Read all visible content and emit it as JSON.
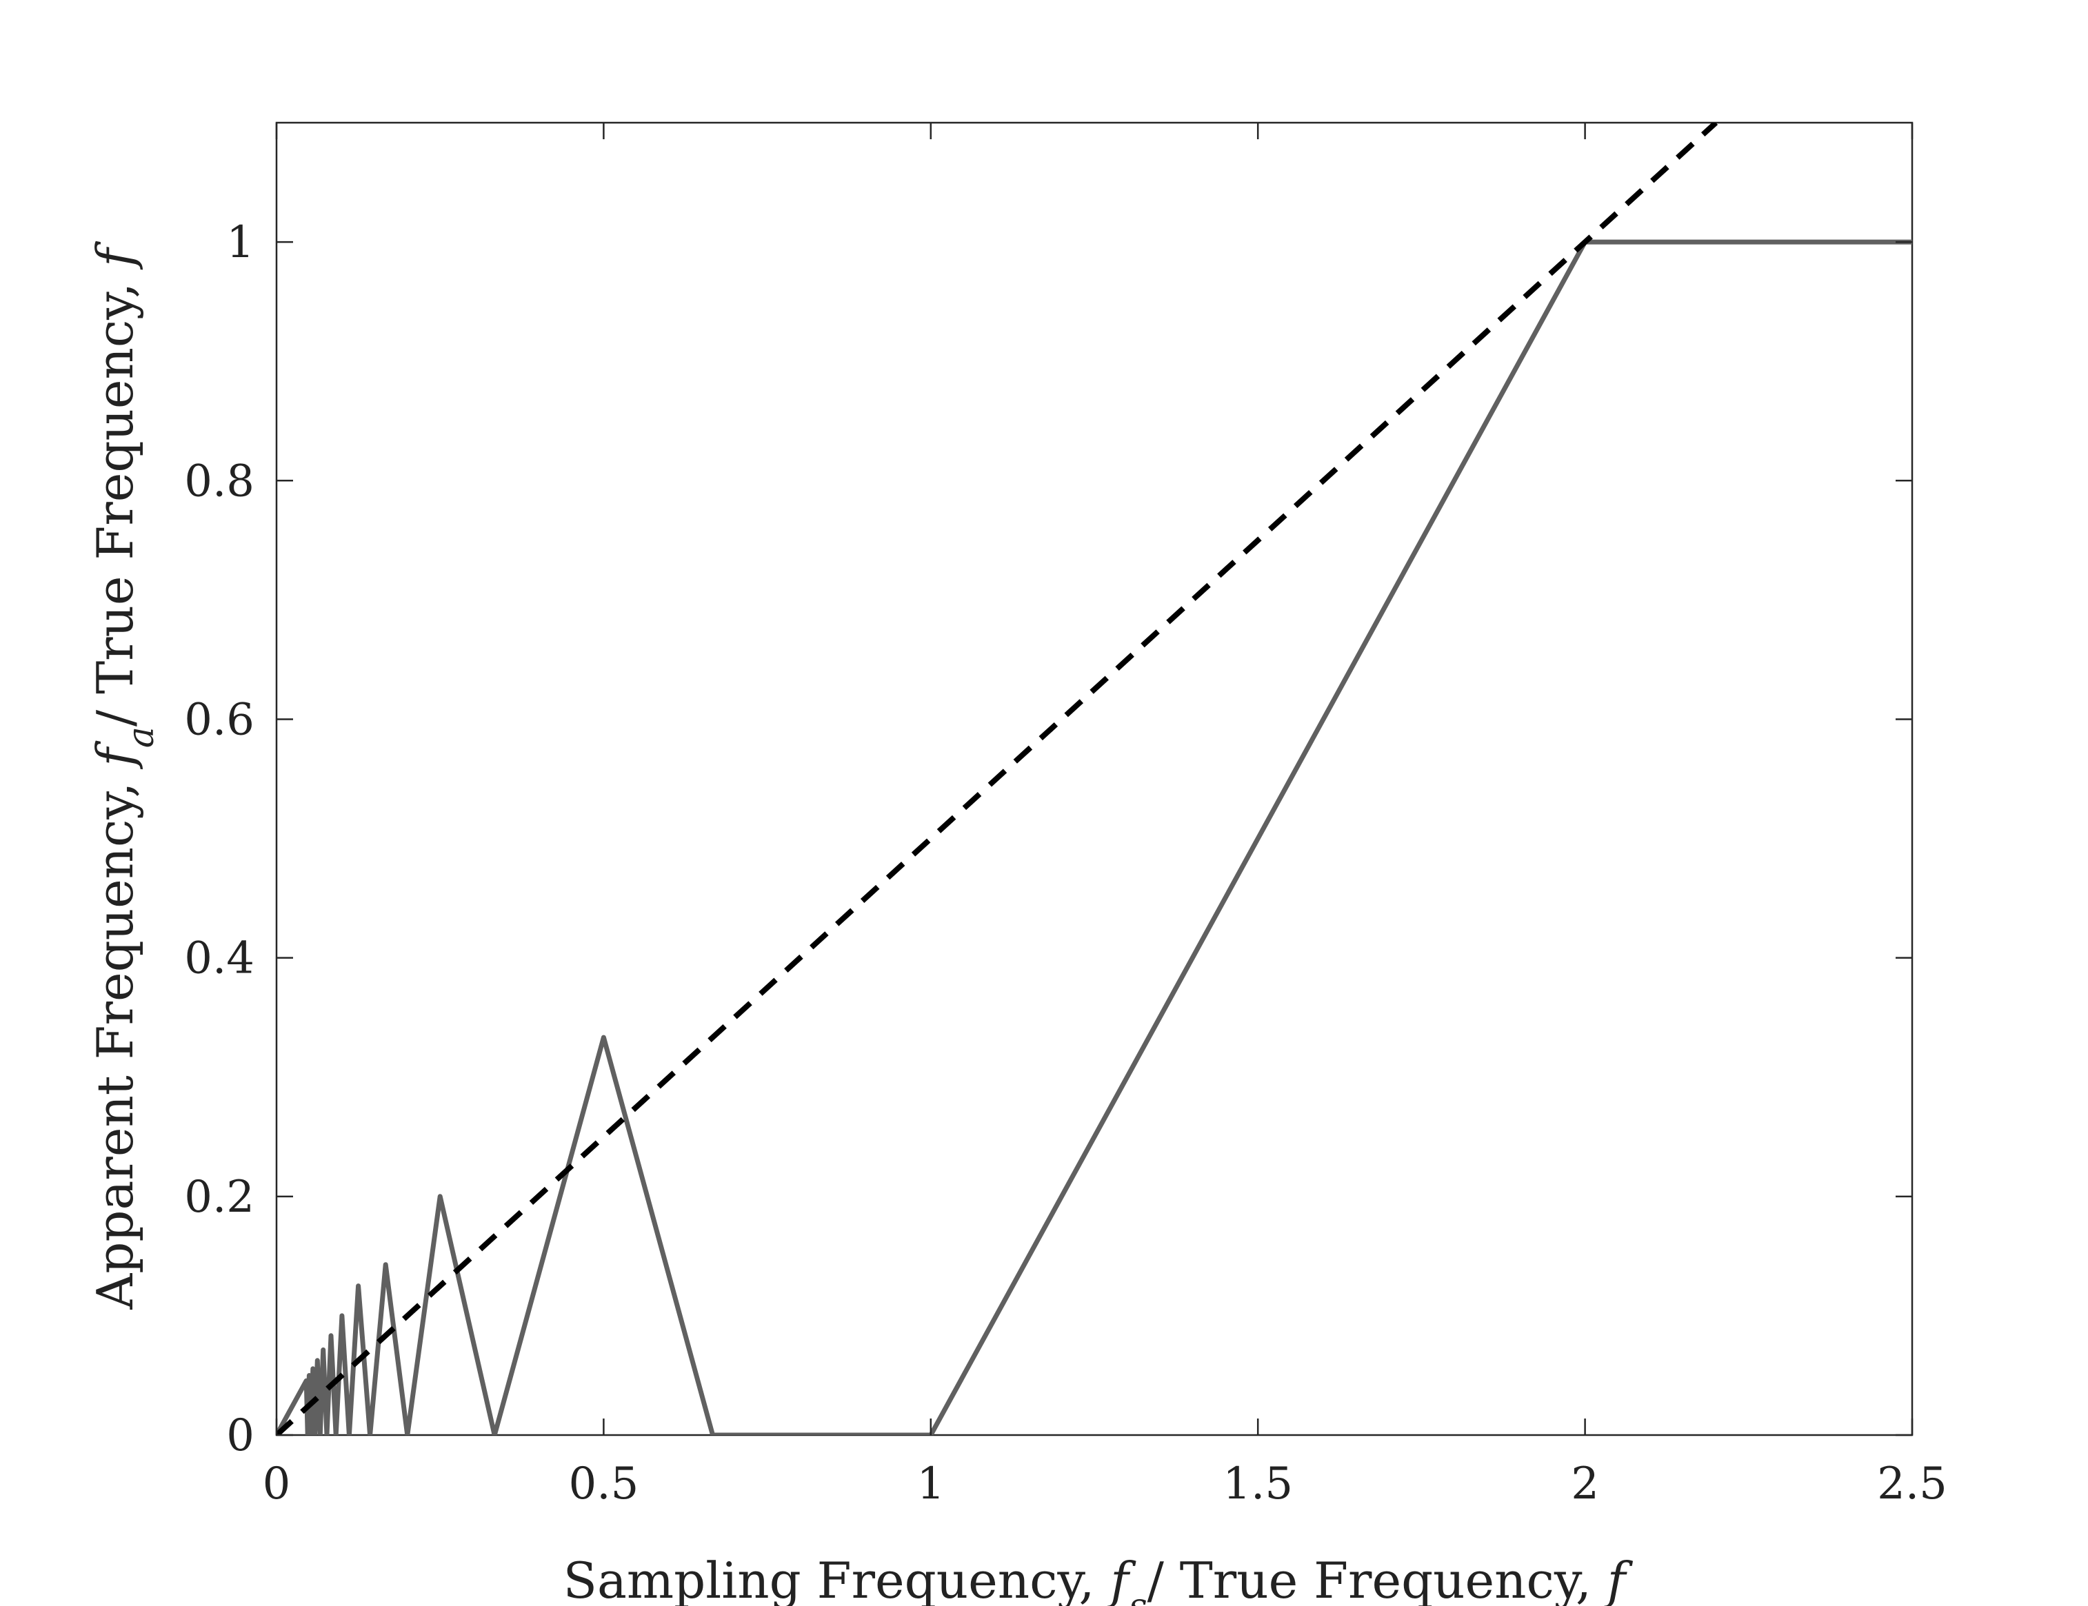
{
  "chart_data": {
    "type": "line",
    "title": "",
    "xlabel_parts": [
      {
        "text": "Sampling Frequency, ",
        "italic": false
      },
      {
        "text": "f",
        "italic": true
      },
      {
        "text": "s",
        "italic": true,
        "sub": true
      },
      {
        "text": "/ True Frequency, ",
        "italic": false
      },
      {
        "text": "f",
        "italic": true
      }
    ],
    "ylabel_parts": [
      {
        "text": "Apparent Frequency, ",
        "italic": false
      },
      {
        "text": "f",
        "italic": true
      },
      {
        "text": "a",
        "italic": true,
        "sub": true
      },
      {
        "text": "/ True Frequency, ",
        "italic": false
      },
      {
        "text": "f",
        "italic": true
      }
    ],
    "xlim": [
      0,
      2.5
    ],
    "ylim": [
      0,
      1.1
    ],
    "xticks": [
      0,
      0.5,
      1,
      1.5,
      2,
      2.5
    ],
    "xtick_labels": [
      "0",
      "0.5",
      "1",
      "1.5",
      "2",
      "2.5"
    ],
    "yticks": [
      0,
      0.2,
      0.4,
      0.6,
      0.8,
      1
    ],
    "ytick_labels": [
      "0",
      "0.2",
      "0.4",
      "0.6",
      "0.8",
      "1"
    ],
    "grid": false,
    "legend": "none",
    "series": [
      {
        "style": "solid",
        "color": "#606060",
        "x": [
          0,
          0.0455,
          0.0476,
          0.05,
          0.0526,
          0.0556,
          0.0588,
          0.0625,
          0.0667,
          0.0714,
          0.0769,
          0.0833,
          0.0909,
          0.1,
          0.1111,
          0.125,
          0.1429,
          0.1667,
          0.2,
          0.25,
          0.3333,
          0.5,
          0.6667,
          1.0,
          2.0,
          2.5
        ],
        "y": [
          0,
          0.0455,
          0,
          0.05,
          0,
          0.0556,
          0,
          0.0625,
          0,
          0.0714,
          0,
          0.0833,
          0,
          0.1,
          0,
          0.125,
          0,
          0.1429,
          0,
          0.2,
          0,
          0.3333,
          0,
          0,
          1,
          1
        ],
        "note_zigzag": "peaks at fs = 2/(2k+1) with fa = fs; zeros at fs = 1/k"
      },
      {
        "style": "dashed",
        "color": "#000000",
        "x": [
          0,
          2.2
        ],
        "y": [
          0,
          1.1
        ]
      }
    ]
  }
}
